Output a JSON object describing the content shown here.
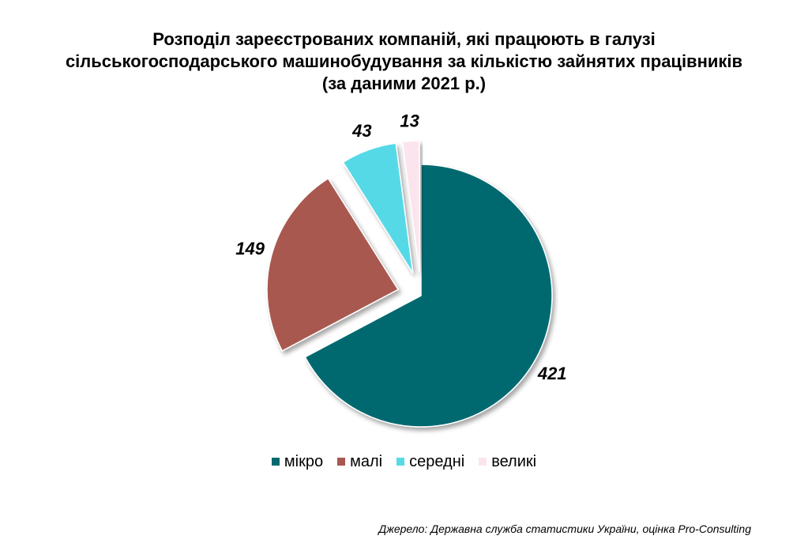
{
  "chart_data": {
    "type": "pie",
    "title_lines": [
      "Розподіл зареєстрованих компаній, які працюють в галузі",
      "сільськогосподарського машинобудування за кількістю зайнятих працівників",
      "(за даними 2021 р.)"
    ],
    "slices": [
      {
        "label": "мікро",
        "value": 421,
        "color": "#00696f",
        "exploded": false
      },
      {
        "label": "малі",
        "value": 149,
        "color": "#a9584f",
        "exploded": true
      },
      {
        "label": "середні",
        "value": 43,
        "color": "#57d9e6",
        "exploded": true
      },
      {
        "label": "великі",
        "value": 13,
        "color": "#fce4ee",
        "exploded": true
      }
    ],
    "legend_position": "bottom"
  },
  "source": "Джерело: Державна служба статистики України, оцінка Pro-Consulting"
}
